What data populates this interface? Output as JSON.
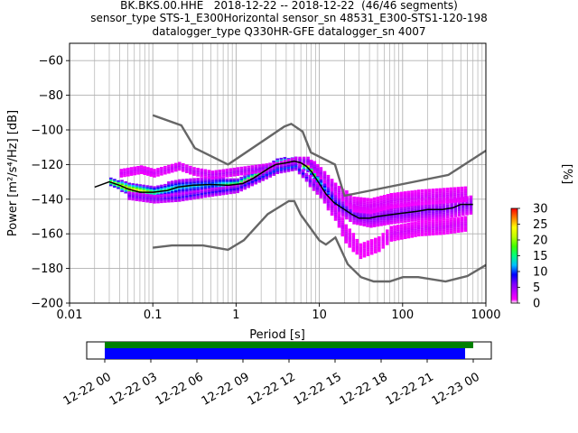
{
  "title_lines": [
    "BK.BKS.00.HHE   2018-12-22 -- 2018-12-22  (46/46 segments)",
    "sensor_type STS-1_E300Horizontal sensor_sn 48531_E300-STS1-120-198",
    "datalogger_type Q330HR-GFE datalogger_sn 4007"
  ],
  "colorbar": {
    "label": "[%]",
    "ticks": [
      "0",
      "5",
      "10",
      "15",
      "20",
      "25",
      "30"
    ],
    "range": [
      0,
      30
    ]
  },
  "availability": {
    "ticks": [
      "12-22 00",
      "12-22 03",
      "12-22 06",
      "12-22 09",
      "12-22 12",
      "12-22 15",
      "12-22 18",
      "12-22 21",
      "12-23 00"
    ],
    "green_color": "#008000",
    "blue_color": "#0000ff"
  },
  "chart_data": {
    "type": "heatmap",
    "xlabel": "Period [s]",
    "ylabel": "Power [m²/s⁴/Hz] [dB]",
    "x_scale": "log",
    "xlim": [
      0.01,
      1000
    ],
    "ylim": [
      -200,
      -50
    ],
    "x_ticks": [
      "0.01",
      "0.1",
      "1",
      "10",
      "100",
      "1000"
    ],
    "y_ticks": [
      "−200",
      "−180",
      "−160",
      "−140",
      "−120",
      "−100",
      "−80",
      "−60"
    ],
    "grid": true,
    "noise_models": {
      "color": "#666666",
      "high": [
        [
          0.1,
          -91.5
        ],
        [
          0.22,
          -97.4
        ],
        [
          0.32,
          -110.5
        ],
        [
          0.8,
          -120
        ],
        [
          3.8,
          -98
        ],
        [
          4.6,
          -96.5
        ],
        [
          6.3,
          -101
        ],
        [
          7.9,
          -113
        ],
        [
          15.4,
          -120
        ],
        [
          20,
          -138
        ],
        [
          354.8,
          -126
        ],
        [
          1000,
          -112
        ]
      ],
      "low": [
        [
          0.1,
          -168
        ],
        [
          0.17,
          -166.7
        ],
        [
          0.4,
          -166.7
        ],
        [
          0.8,
          -169.2
        ],
        [
          1.24,
          -163.7
        ],
        [
          2.4,
          -148.6
        ],
        [
          4.3,
          -141.1
        ],
        [
          5,
          -141.1
        ],
        [
          6,
          -149
        ],
        [
          10,
          -163.8
        ],
        [
          12,
          -166.2
        ],
        [
          15.6,
          -162.1
        ],
        [
          21.9,
          -177.5
        ],
        [
          31.6,
          -185
        ],
        [
          45,
          -187.5
        ],
        [
          70,
          -187.5
        ],
        [
          101,
          -185
        ],
        [
          154,
          -185
        ],
        [
          328,
          -187.5
        ],
        [
          600,
          -184.4
        ],
        [
          1000,
          -178
        ]
      ]
    },
    "mean_curve": {
      "color": "#000000",
      "points": [
        [
          0.02,
          -133
        ],
        [
          0.03,
          -130
        ],
        [
          0.04,
          -132
        ],
        [
          0.05,
          -134
        ],
        [
          0.07,
          -136
        ],
        [
          0.1,
          -136
        ],
        [
          0.15,
          -135
        ],
        [
          0.2,
          -133
        ],
        [
          0.3,
          -132
        ],
        [
          0.5,
          -131.5
        ],
        [
          0.8,
          -132
        ],
        [
          1.2,
          -131
        ],
        [
          1.6,
          -128
        ],
        [
          2,
          -125
        ],
        [
          2.5,
          -122
        ],
        [
          3,
          -120
        ],
        [
          4,
          -119
        ],
        [
          5,
          -118
        ],
        [
          6,
          -119
        ],
        [
          7,
          -121
        ],
        [
          8,
          -124
        ],
        [
          10,
          -131
        ],
        [
          12,
          -137
        ],
        [
          15,
          -142
        ],
        [
          20,
          -146
        ],
        [
          25,
          -149
        ],
        [
          30,
          -151
        ],
        [
          40,
          -151
        ],
        [
          50,
          -150
        ],
        [
          70,
          -149
        ],
        [
          100,
          -148
        ],
        [
          150,
          -147
        ],
        [
          200,
          -146
        ],
        [
          300,
          -146
        ],
        [
          400,
          -145
        ],
        [
          500,
          -143
        ],
        [
          700,
          -143
        ]
      ]
    },
    "ppsd_bands": [
      {
        "name": "core",
        "points": [
          [
            0.03,
            -130
          ],
          [
            0.05,
            -134
          ],
          [
            0.1,
            -136
          ],
          [
            0.2,
            -133
          ],
          [
            0.5,
            -131.5
          ],
          [
            1,
            -131.5
          ],
          [
            2,
            -125
          ],
          [
            3,
            -120
          ],
          [
            5,
            -118
          ],
          [
            7,
            -121
          ],
          [
            10,
            -131
          ],
          [
            15,
            -142
          ],
          [
            25,
            -149
          ],
          [
            40,
            -151
          ],
          [
            70,
            -149
          ],
          [
            150,
            -147
          ],
          [
            300,
            -146
          ],
          [
            700,
            -143
          ]
        ],
        "spread": [
          2,
          3,
          3,
          4,
          4,
          3,
          3,
          3,
          2,
          3,
          4,
          5,
          5,
          5,
          5,
          5,
          5,
          5
        ],
        "pct": [
          22,
          25,
          18,
          14,
          12,
          20,
          22,
          26,
          28,
          22,
          12,
          9,
          7,
          6,
          6,
          6,
          6,
          6
        ]
      },
      {
        "name": "upper",
        "points": [
          [
            0.04,
            -125
          ],
          [
            0.07,
            -123
          ],
          [
            0.1,
            -125
          ],
          [
            0.2,
            -121
          ],
          [
            0.3,
            -124
          ],
          [
            0.5,
            -126
          ],
          [
            3,
            -121
          ],
          [
            5,
            -118
          ],
          [
            7,
            -118
          ],
          [
            10,
            -125
          ],
          [
            15,
            -134
          ],
          [
            25,
            -143
          ],
          [
            40,
            -144
          ],
          [
            70,
            -141
          ],
          [
            150,
            -139
          ],
          [
            300,
            -138
          ],
          [
            600,
            -137
          ]
        ],
        "spread": [
          2,
          2,
          2,
          2,
          2,
          2,
          2,
          2,
          2,
          3,
          3,
          4,
          4,
          4,
          4,
          4,
          4
        ],
        "pct": [
          2,
          2,
          2,
          3,
          3,
          3,
          5,
          5,
          5,
          4,
          3,
          2,
          2,
          2,
          2,
          2,
          2
        ]
      },
      {
        "name": "lower",
        "points": [
          [
            0.05,
            -138
          ],
          [
            0.1,
            -140
          ],
          [
            0.2,
            -139
          ],
          [
            0.5,
            -136
          ],
          [
            1,
            -134
          ],
          [
            3,
            -123
          ],
          [
            5,
            -121
          ],
          [
            10,
            -136
          ],
          [
            15,
            -148
          ],
          [
            20,
            -160
          ],
          [
            30,
            -170
          ],
          [
            50,
            -166
          ],
          [
            70,
            -160
          ],
          [
            150,
            -157
          ],
          [
            300,
            -156
          ],
          [
            600,
            -154
          ]
        ],
        "spread": [
          2,
          2,
          2,
          2,
          2,
          2,
          2,
          3,
          4,
          5,
          4,
          4,
          4,
          4,
          4,
          4
        ],
        "pct": [
          6,
          6,
          8,
          8,
          8,
          10,
          10,
          5,
          3,
          2,
          1,
          1,
          2,
          2,
          2,
          2
        ]
      }
    ]
  }
}
